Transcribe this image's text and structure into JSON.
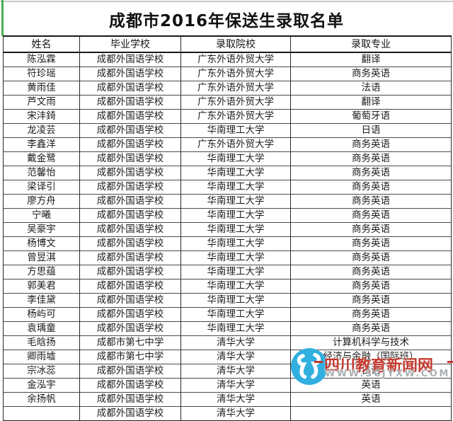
{
  "title": "成都市2016年保送生录取名单",
  "table": {
    "headers": [
      "姓名",
      "毕业学校",
      "录取院校",
      "录取专业"
    ],
    "rows": [
      [
        "陈泓霖",
        "成都外国语学校",
        "广东外语外贸大学",
        "翻译"
      ],
      [
        "符珍瑶",
        "成都外国语学校",
        "广东外语外贸大学",
        "商务英语"
      ],
      [
        "黄雨佳",
        "成都外国语学校",
        "广东外语外贸大学",
        "法语"
      ],
      [
        "芦文雨",
        "成都外国语学校",
        "广东外语外贸大学",
        "翻译"
      ],
      [
        "宋沣錡",
        "成都外国语学校",
        "广东外语外贸大学",
        "葡萄牙语"
      ],
      [
        "龙凌芸",
        "成都外国语学校",
        "华南理工大学",
        "日语"
      ],
      [
        "李鑫洋",
        "成都外国语学校",
        "广东外语外贸大学",
        "商务英语"
      ],
      [
        "戴金鹭",
        "成都外国语学校",
        "华南理工大学",
        "商务英语"
      ],
      [
        "范馨怡",
        "成都外国语学校",
        "华南理工大学",
        "商务英语"
      ],
      [
        "梁译引",
        "成都外国语学校",
        "华南理工大学",
        "商务英语"
      ],
      [
        "廖方舟",
        "成都外国语学校",
        "华南理工大学",
        "商务英语"
      ],
      [
        "宁曦",
        "成都外国语学校",
        "华南理工大学",
        "商务英语"
      ],
      [
        "吴豪宇",
        "成都外国语学校",
        "华南理工大学",
        "商务英语"
      ],
      [
        "杨博文",
        "成都外国语学校",
        "华南理工大学",
        "商务英语"
      ],
      [
        "曾昱淇",
        "成都外国语学校",
        "华南理工大学",
        "商务英语"
      ],
      [
        "方思蕴",
        "成都外国语学校",
        "华南理工大学",
        "商务英语"
      ],
      [
        "郭美君",
        "成都外国语学校",
        "华南理工大学",
        "商务英语"
      ],
      [
        "李佳黛",
        "成都外国语学校",
        "华南理工大学",
        "商务英语"
      ],
      [
        "杨屿可",
        "成都外国语学校",
        "华南理工大学",
        "商务英语"
      ],
      [
        "袁瑀童",
        "成都外国语学校",
        "华南理工大学",
        "商务英语"
      ],
      [
        "毛晗扬",
        "成都市第七中学",
        "清华大学",
        "计算机科学与技术"
      ],
      [
        "卿雨墟",
        "成都市第七中学",
        "清华大学",
        "经济与金融（国际班）"
      ],
      [
        "宗冰蕊",
        "成都外国语学校",
        "清华大学",
        "日语"
      ],
      [
        "金泓宇",
        "成都外国语学校",
        "清华大学",
        "英语"
      ],
      [
        "余扬帆",
        "成都外国语学校",
        "清华大学",
        "英语"
      ]
    ],
    "partial_row": [
      "",
      "成都外国语学校",
      "清华大学",
      ""
    ]
  },
  "watermark": {
    "site_name": "四川教育新闻网",
    "site_url": "WWW.SCJYXW.COM",
    "text_color": "#c43a2f",
    "url_color": "#aab1b4",
    "logo_color": "#31b0e0"
  },
  "colors": {
    "accent_green": "#4cb050",
    "table_border": "#222222",
    "top_line_gray": "#c9c9c9"
  }
}
